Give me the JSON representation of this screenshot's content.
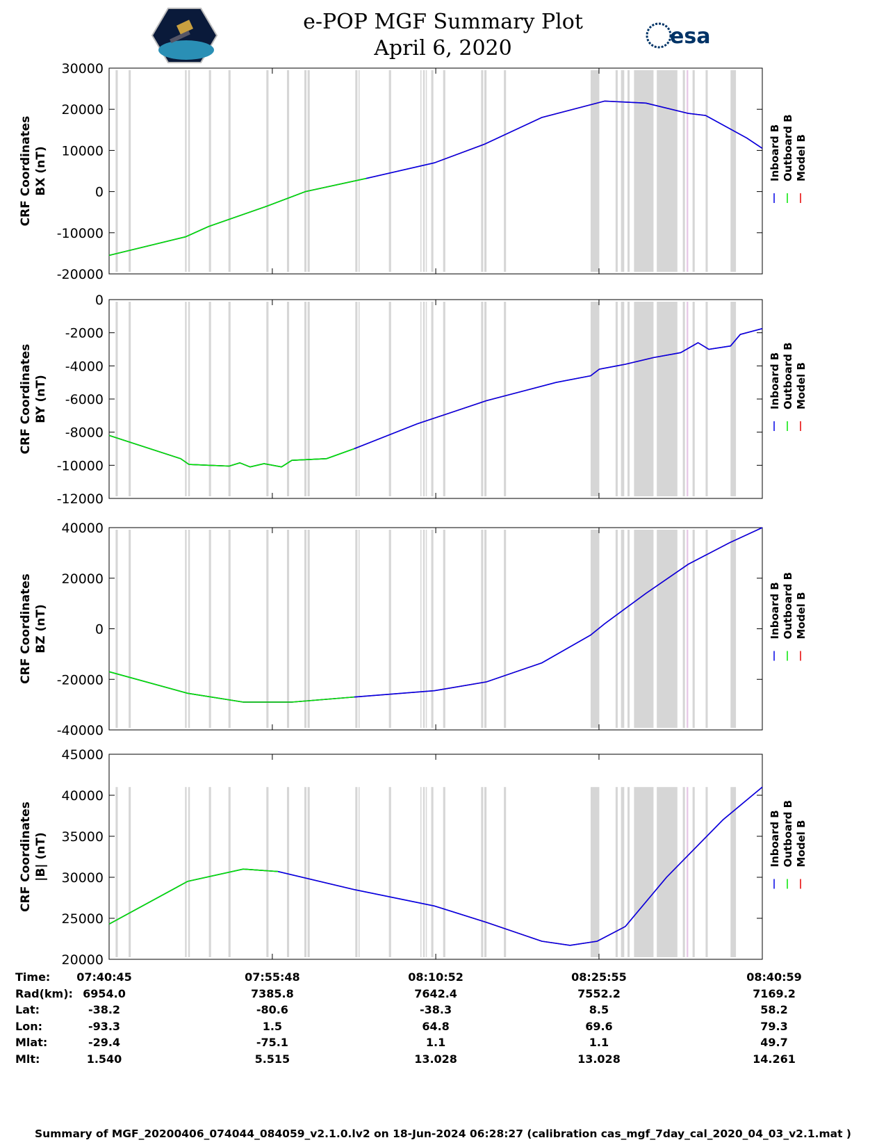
{
  "header": {
    "title": "e-POP MGF Summary Plot",
    "date": "April 6, 2020",
    "logo_left": "CASSIOPE",
    "logo_right": "esa"
  },
  "chart_data": [
    {
      "type": "line",
      "ylabel": [
        "CRF Coordinates",
        "BX (nT)"
      ],
      "ylim": [
        -20000,
        30000
      ],
      "yticks": [
        -20000,
        -10000,
        0,
        10000,
        20000,
        30000
      ],
      "outboard_end_min": 23.7,
      "series_points": [
        [
          0,
          -15500
        ],
        [
          7.05,
          -11000
        ],
        [
          9.16,
          -8500
        ],
        [
          14.6,
          -3500
        ],
        [
          18.1,
          0
        ],
        [
          23.7,
          3200
        ],
        [
          30.0,
          7000
        ],
        [
          34.6,
          11500
        ],
        [
          39.9,
          18000
        ],
        [
          45.7,
          22000
        ],
        [
          49.5,
          21500
        ],
        [
          53.4,
          19000
        ],
        [
          55.0,
          18500
        ],
        [
          58.8,
          13000
        ],
        [
          60.23,
          10500
        ]
      ]
    },
    {
      "type": "line",
      "ylabel": [
        "CRF Coordinates",
        "BY (nT)"
      ],
      "ylim": [
        -12000,
        0
      ],
      "yticks": [
        -12000,
        -10000,
        -8000,
        -6000,
        -4000,
        -2000,
        0
      ],
      "outboard_end_min": 22.6,
      "series_points": [
        [
          0,
          -8200
        ],
        [
          6.6,
          -9600
        ],
        [
          7.37,
          -9950
        ],
        [
          9.16,
          -10000
        ],
        [
          11.08,
          -10050
        ],
        [
          12.05,
          -9850
        ],
        [
          13.0,
          -10100
        ],
        [
          14.29,
          -9900
        ],
        [
          15.9,
          -10100
        ],
        [
          16.85,
          -9700
        ],
        [
          20.05,
          -9600
        ],
        [
          22.6,
          -9000
        ],
        [
          28.4,
          -7500
        ],
        [
          34.8,
          -6100
        ],
        [
          41.2,
          -5000
        ],
        [
          44.4,
          -4600
        ],
        [
          45.2,
          -4200
        ],
        [
          47.6,
          -3900
        ],
        [
          50.2,
          -3500
        ],
        [
          52.7,
          -3200
        ],
        [
          54.3,
          -2600
        ],
        [
          55.3,
          -3000
        ],
        [
          57.3,
          -2800
        ],
        [
          58.2,
          -2100
        ],
        [
          60.23,
          -1750
        ]
      ]
    },
    {
      "type": "line",
      "ylabel": [
        "CRF Coordinates",
        "BZ (nT)"
      ],
      "ylim": [
        -40000,
        40000
      ],
      "yticks": [
        -40000,
        -20000,
        0,
        20000,
        40000
      ],
      "outboard_end_min": 22.6,
      "series_points": [
        [
          0,
          -17000
        ],
        [
          7.24,
          -25500
        ],
        [
          12.37,
          -29000
        ],
        [
          16.85,
          -29000
        ],
        [
          22.6,
          -27000
        ],
        [
          30.0,
          -24500
        ],
        [
          34.8,
          -21000
        ],
        [
          39.9,
          -13500
        ],
        [
          44.4,
          -2500
        ],
        [
          45.7,
          2000
        ],
        [
          49.5,
          14000
        ],
        [
          53.4,
          25500
        ],
        [
          57.2,
          34000
        ],
        [
          60.23,
          40000
        ]
      ]
    },
    {
      "type": "line",
      "ylabel": [
        "CRF Coordinates",
        "|B| (nT)"
      ],
      "ylim": [
        20000,
        45000
      ],
      "yticks": [
        20000,
        25000,
        30000,
        35000,
        40000,
        45000
      ],
      "outboard_end_min": 20.7,
      "series_points": [
        [
          0,
          24300
        ],
        [
          7.24,
          29500
        ],
        [
          12.37,
          31000
        ],
        [
          15.57,
          30700
        ],
        [
          22.6,
          28500
        ],
        [
          30.0,
          26500
        ],
        [
          34.8,
          24500
        ],
        [
          39.9,
          22200
        ],
        [
          42.5,
          21700
        ],
        [
          45.0,
          22200
        ],
        [
          47.6,
          24000
        ],
        [
          51.4,
          30000
        ],
        [
          56.6,
          37000
        ],
        [
          60.23,
          41000
        ]
      ]
    }
  ],
  "x_range_min": [
    0,
    60.23
  ],
  "x_tick_min": [
    0,
    15.05,
    30.12,
    45.17,
    60.23
  ],
  "gap_bands_min": [
    [
      0.6,
      0.8
    ],
    [
      1.8,
      2.0
    ],
    [
      7.0,
      7.15
    ],
    [
      7.3,
      7.45
    ],
    [
      9.2,
      9.4
    ],
    [
      11.0,
      11.2
    ],
    [
      14.5,
      14.7
    ],
    [
      16.4,
      16.6
    ],
    [
      18.0,
      18.2
    ],
    [
      18.3,
      18.5
    ],
    [
      22.7,
      22.9
    ],
    [
      23.0,
      23.1
    ],
    [
      25.8,
      26.0
    ],
    [
      28.7,
      28.8
    ],
    [
      28.95,
      29.1
    ],
    [
      29.2,
      29.3
    ],
    [
      29.7,
      29.9
    ],
    [
      30.8,
      31.0
    ],
    [
      34.3,
      34.5
    ],
    [
      34.6,
      34.8
    ],
    [
      36.4,
      36.6
    ],
    [
      44.4,
      45.2
    ],
    [
      46.7,
      46.9
    ],
    [
      47.2,
      47.5
    ],
    [
      47.8,
      48.0
    ],
    [
      48.4,
      50.2
    ],
    [
      50.5,
      52.4
    ],
    [
      52.9,
      53.1
    ],
    [
      53.8,
      54.0
    ],
    [
      55.0,
      55.2
    ],
    [
      57.3,
      57.8
    ]
  ],
  "pink_bands_min": [
    [
      53.25,
      53.4
    ]
  ],
  "legend": [
    "Inboard B",
    "Outboard B",
    "Model B"
  ],
  "colors": {
    "inboard": "#0000e6",
    "outboard": "#00e600",
    "model": "#e60000",
    "gap": "#d6d6d6",
    "pink": "#e6c8e6"
  },
  "table": {
    "labels": [
      "Time:",
      "Rad(km):",
      "Lat:",
      "Lon:",
      "Mlat:",
      "Mlt:"
    ],
    "columns": [
      [
        "07:40:45",
        "6954.0",
        "-38.2",
        "-93.3",
        "-29.4",
        "1.540"
      ],
      [
        "07:55:48",
        "7385.8",
        "-80.6",
        "1.5",
        "-75.1",
        "5.515"
      ],
      [
        "08:10:52",
        "7642.4",
        "-38.3",
        "64.8",
        "1.1",
        "13.028"
      ],
      [
        "08:25:55",
        "7552.2",
        "8.5",
        "69.6",
        "1.1",
        "13.028"
      ],
      [
        "08:40:59",
        "7169.2",
        "58.2",
        "79.3",
        "49.7",
        "14.261"
      ]
    ]
  },
  "footer": "Summary of MGF_20200406_074044_084059_v2.1.0.lv2 on 18-Jun-2024 06:28:27 (calibration cas_mgf_7day_cal_2020_04_03_v2.1.mat )"
}
